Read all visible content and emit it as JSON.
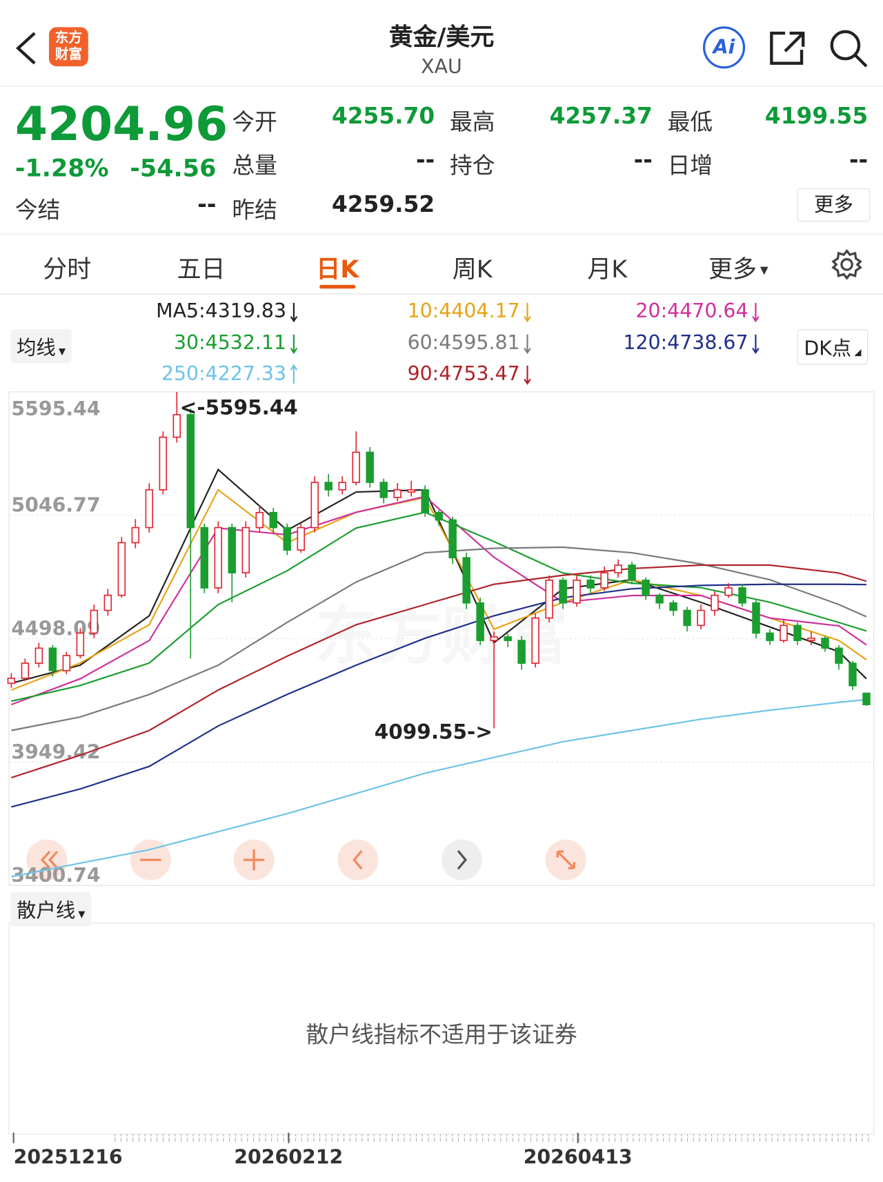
{
  "header": {
    "logo_lines": [
      "东方",
      "财富"
    ],
    "title": "黄金/美元",
    "symbol": "XAU",
    "ai_label": "Ai"
  },
  "quote": {
    "price": "4204.96",
    "change_pct": "-1.28%",
    "change": "-54.56",
    "fields": [
      {
        "label": "今开",
        "value": "4255.70"
      },
      {
        "label": "最高",
        "value": "4257.37"
      },
      {
        "label": "最低",
        "value": "4199.55"
      },
      {
        "label": "总量",
        "value": "--"
      },
      {
        "label": "持仓",
        "value": "--"
      },
      {
        "label": "日增",
        "value": "--"
      },
      {
        "label": "今结",
        "value": "--"
      },
      {
        "label": "昨结",
        "value": "4259.52"
      }
    ],
    "more": "更多"
  },
  "tabs": {
    "items": [
      "分时",
      "五日",
      "日K",
      "周K",
      "月K",
      "更多"
    ],
    "active": 2
  },
  "chart_data": {
    "type": "candlestick",
    "ma_button": "均线",
    "dk_button": "DK点",
    "ylim": [
      3400.74,
      5595.44
    ],
    "yticks": [
      5595.44,
      5046.77,
      4498.09,
      3949.42,
      3400.74
    ],
    "grid": true,
    "up_color": "#e2212d",
    "down_color": "#1a9e2f",
    "watermark": "东方财富",
    "annotations": [
      "<-5595.44",
      "4099.55->"
    ],
    "ma_x": [
      0,
      5,
      10,
      15,
      20,
      25,
      30,
      35,
      40,
      45,
      50,
      55,
      60,
      62
    ],
    "ma": [
      {
        "label": "MA5:",
        "color": "#222222",
        "direction": "down",
        "values": [
          4300,
          4380,
          4600,
          5250,
          4980,
          5150,
          5160,
          4480,
          4720,
          4760,
          4660,
          4550,
          4440,
          4319.83
        ]
      },
      {
        "label": "10:",
        "color": "#e8a317",
        "direction": "down",
        "values": [
          4270,
          4390,
          4560,
          5160,
          4925,
          5060,
          5126,
          4540,
          4660,
          4760,
          4690,
          4590,
          4490,
          4404.17
        ]
      },
      {
        "label": "20:",
        "color": "#d12f9c",
        "direction": "down",
        "values": [
          4205,
          4320,
          4490,
          4990,
          4960,
          5060,
          5130,
          4860,
          4660,
          4690,
          4690,
          4590,
          4555,
          4470.64
        ]
      },
      {
        "label": "30:",
        "color": "#1a9e2f",
        "direction": "down",
        "values": [
          4220,
          4290,
          4390,
          4650,
          4800,
          4990,
          5060,
          4930,
          4790,
          4745,
          4725,
          4660,
          4570,
          4532.11
        ]
      },
      {
        "label": "60:",
        "color": "#7a7a7a",
        "direction": "down",
        "values": [
          4090,
          4150,
          4250,
          4380,
          4570,
          4750,
          4880,
          4900,
          4905,
          4880,
          4830,
          4760,
          4650,
          4595.81
        ]
      },
      {
        "label": "120:",
        "color": "#1f2f8a",
        "direction": "down",
        "values": [
          3750,
          3830,
          3930,
          4110,
          4250,
          4380,
          4500,
          4600,
          4680,
          4720,
          4735,
          4740,
          4740,
          4738.67
        ]
      },
      {
        "label": "250:",
        "color": "#6ec3e8",
        "direction": "up",
        "values": [
          3440,
          3500,
          3560,
          3640,
          3720,
          3810,
          3900,
          3970,
          4040,
          4090,
          4140,
          4180,
          4215,
          4227.33
        ]
      },
      {
        "label": "90:",
        "color": "#b0242a",
        "direction": "down",
        "values": [
          3880,
          3980,
          4090,
          4270,
          4420,
          4560,
          4650,
          4740,
          4780,
          4810,
          4825,
          4825,
          4790,
          4753.47
        ]
      }
    ],
    "candles": [
      [
        4300,
        4345,
        4280,
        4322
      ],
      [
        4322,
        4410,
        4310,
        4389
      ],
      [
        4389,
        4480,
        4370,
        4456
      ],
      [
        4456,
        4470,
        4330,
        4356
      ],
      [
        4356,
        4440,
        4340,
        4423
      ],
      [
        4423,
        4545,
        4410,
        4523
      ],
      [
        4523,
        4650,
        4500,
        4624
      ],
      [
        4624,
        4720,
        4600,
        4691
      ],
      [
        4691,
        4950,
        4680,
        4925
      ],
      [
        4925,
        5030,
        4900,
        4992
      ],
      [
        4992,
        5190,
        4970,
        5160
      ],
      [
        5160,
        5420,
        5140,
        5394
      ],
      [
        5394,
        5595.44,
        5370,
        5494
      ],
      [
        5494,
        5520,
        4410,
        4992
      ],
      [
        4992,
        5010,
        4700,
        4724
      ],
      [
        4724,
        5020,
        4700,
        4992
      ],
      [
        4992,
        5010,
        4660,
        4791
      ],
      [
        4791,
        5020,
        4770,
        4992
      ],
      [
        4992,
        5090,
        4970,
        5059
      ],
      [
        5059,
        5080,
        4970,
        4992
      ],
      [
        4992,
        5010,
        4870,
        4892
      ],
      [
        4892,
        5010,
        4880,
        4992
      ],
      [
        4992,
        5220,
        4970,
        5193
      ],
      [
        5193,
        5230,
        5130,
        5160
      ],
      [
        5160,
        5220,
        5140,
        5193
      ],
      [
        5193,
        5420,
        5180,
        5327
      ],
      [
        5327,
        5350,
        5170,
        5193
      ],
      [
        5193,
        5210,
        5100,
        5126
      ],
      [
        5126,
        5190,
        5110,
        5160
      ],
      [
        5150,
        5200,
        5130,
        5160
      ],
      [
        5160,
        5180,
        5040,
        5059
      ],
      [
        5059,
        5070,
        5000,
        5026
      ],
      [
        5026,
        5040,
        4830,
        4858
      ],
      [
        4858,
        4880,
        4630,
        4657
      ],
      [
        4657,
        4680,
        4470,
        4490
      ],
      [
        4490,
        4530,
        4099.55,
        4506
      ],
      [
        4506,
        4520,
        4460,
        4490
      ],
      [
        4490,
        4510,
        4360,
        4389
      ],
      [
        4389,
        4610,
        4370,
        4590
      ],
      [
        4590,
        4780,
        4570,
        4758
      ],
      [
        4758,
        4770,
        4630,
        4657
      ],
      [
        4657,
        4790,
        4640,
        4758
      ],
      [
        4758,
        4780,
        4700,
        4724
      ],
      [
        4724,
        4820,
        4710,
        4791
      ],
      [
        4791,
        4850,
        4770,
        4825
      ],
      [
        4825,
        4840,
        4740,
        4758
      ],
      [
        4758,
        4770,
        4670,
        4691
      ],
      [
        4691,
        4700,
        4630,
        4657
      ],
      [
        4657,
        4670,
        4600,
        4624
      ],
      [
        4624,
        4640,
        4530,
        4557
      ],
      [
        4557,
        4650,
        4540,
        4624
      ],
      [
        4624,
        4710,
        4600,
        4691
      ],
      [
        4691,
        4745,
        4680,
        4724
      ],
      [
        4724,
        4740,
        4640,
        4657
      ],
      [
        4657,
        4670,
        4500,
        4523
      ],
      [
        4523,
        4540,
        4470,
        4490
      ],
      [
        4490,
        4580,
        4480,
        4557
      ],
      [
        4557,
        4570,
        4470,
        4490
      ],
      [
        4490,
        4530,
        4470,
        4500
      ],
      [
        4500,
        4510,
        4440,
        4456
      ],
      [
        4456,
        4470,
        4360,
        4389
      ],
      [
        4389,
        4400,
        4270,
        4289
      ],
      [
        4255.7,
        4257.37,
        4199.55,
        4204.96
      ]
    ],
    "dates": [
      "20251216",
      "20260212",
      "20260413"
    ]
  },
  "indicator": {
    "name": "散户线",
    "message": "散户线指标不适用于该证券"
  }
}
